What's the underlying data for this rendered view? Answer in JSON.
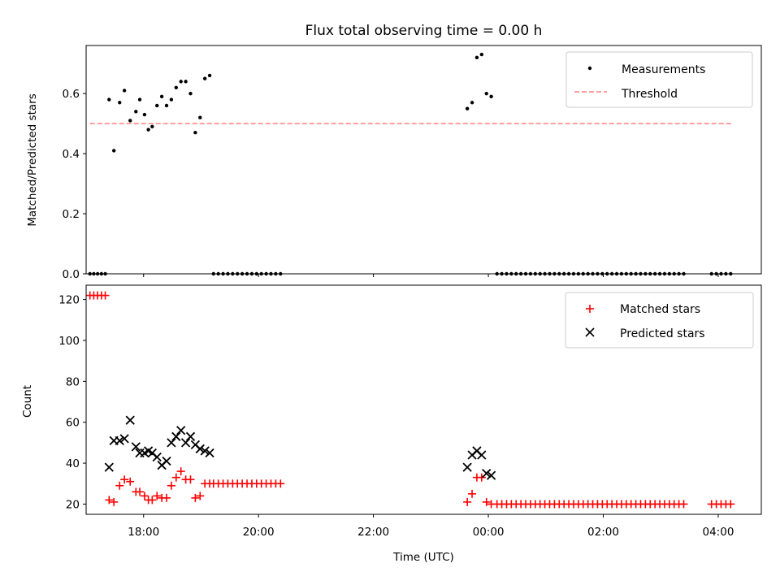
{
  "figure": {
    "title": "Flux total observing time = 0.00 h"
  },
  "chart_data": [
    {
      "type": "scatter",
      "ylabel": "Matched/Predicted stars",
      "xlabel": "",
      "xlim": [
        "17:00",
        "04:45"
      ],
      "ylim": [
        0,
        0.76
      ],
      "x_ticks": [
        "18:00",
        "20:00",
        "22:00",
        "00:00",
        "02:00",
        "04:00"
      ],
      "y_ticks": [
        "0.0",
        "0.2",
        "0.4",
        "0.6"
      ],
      "grid": false,
      "legend_position": "top-right",
      "legend": [
        "Measurements",
        "Threshold"
      ],
      "threshold": {
        "name": "Threshold",
        "value": 0.5,
        "x_start": "17:04",
        "x_end": "04:15",
        "color": "#ff7f7f",
        "style": "dashed"
      },
      "series": [
        {
          "name": "Measurements",
          "color": "#000000",
          "points": [
            [
              "17:04",
              0.0
            ],
            [
              "17:08",
              0.0
            ],
            [
              "17:12",
              0.0
            ],
            [
              "17:16",
              0.0
            ],
            [
              "17:20",
              0.0
            ],
            [
              "17:24",
              0.58
            ],
            [
              "17:29",
              0.41
            ],
            [
              "17:35",
              0.57
            ],
            [
              "17:40",
              0.61
            ],
            [
              "17:46",
              0.51
            ],
            [
              "17:52",
              0.54
            ],
            [
              "17:56",
              0.58
            ],
            [
              "18:01",
              0.53
            ],
            [
              "18:05",
              0.48
            ],
            [
              "18:09",
              0.49
            ],
            [
              "18:14",
              0.56
            ],
            [
              "18:19",
              0.59
            ],
            [
              "18:24",
              0.56
            ],
            [
              "18:29",
              0.58
            ],
            [
              "18:34",
              0.62
            ],
            [
              "18:39",
              0.64
            ],
            [
              "18:44",
              0.64
            ],
            [
              "18:49",
              0.6
            ],
            [
              "18:54",
              0.47
            ],
            [
              "18:59",
              0.52
            ],
            [
              "19:04",
              0.65
            ],
            [
              "19:09",
              0.66
            ],
            [
              "19:13",
              0.0
            ],
            [
              "19:18",
              0.0
            ],
            [
              "19:23",
              0.0
            ],
            [
              "19:28",
              0.0
            ],
            [
              "19:33",
              0.0
            ],
            [
              "19:38",
              0.0
            ],
            [
              "19:43",
              0.0
            ],
            [
              "19:48",
              0.0
            ],
            [
              "19:53",
              0.0
            ],
            [
              "19:58",
              0.0
            ],
            [
              "20:03",
              0.0
            ],
            [
              "20:08",
              0.0
            ],
            [
              "20:13",
              0.0
            ],
            [
              "20:18",
              0.0
            ],
            [
              "20:23",
              0.0
            ],
            [
              "23:38",
              0.55
            ],
            [
              "23:43",
              0.57
            ],
            [
              "23:48",
              0.72
            ],
            [
              "23:53",
              0.73
            ],
            [
              "23:58",
              0.6
            ],
            [
              "00:03",
              0.59
            ],
            [
              "00:09",
              0.0
            ],
            [
              "00:14",
              0.0
            ],
            [
              "00:19",
              0.0
            ],
            [
              "00:24",
              0.0
            ],
            [
              "00:29",
              0.0
            ],
            [
              "00:34",
              0.0
            ],
            [
              "00:39",
              0.0
            ],
            [
              "00:44",
              0.0
            ],
            [
              "00:49",
              0.0
            ],
            [
              "00:54",
              0.0
            ],
            [
              "00:59",
              0.0
            ],
            [
              "01:04",
              0.0
            ],
            [
              "01:09",
              0.0
            ],
            [
              "01:14",
              0.0
            ],
            [
              "01:19",
              0.0
            ],
            [
              "01:24",
              0.0
            ],
            [
              "01:29",
              0.0
            ],
            [
              "01:34",
              0.0
            ],
            [
              "01:39",
              0.0
            ],
            [
              "01:44",
              0.0
            ],
            [
              "01:49",
              0.0
            ],
            [
              "01:54",
              0.0
            ],
            [
              "01:59",
              0.0
            ],
            [
              "02:04",
              0.0
            ],
            [
              "02:09",
              0.0
            ],
            [
              "02:14",
              0.0
            ],
            [
              "02:19",
              0.0
            ],
            [
              "02:24",
              0.0
            ],
            [
              "02:29",
              0.0
            ],
            [
              "02:34",
              0.0
            ],
            [
              "02:39",
              0.0
            ],
            [
              "02:44",
              0.0
            ],
            [
              "02:49",
              0.0
            ],
            [
              "02:54",
              0.0
            ],
            [
              "02:59",
              0.0
            ],
            [
              "03:04",
              0.0
            ],
            [
              "03:09",
              0.0
            ],
            [
              "03:14",
              0.0
            ],
            [
              "03:19",
              0.0
            ],
            [
              "03:24",
              0.0
            ],
            [
              "03:53",
              0.0
            ],
            [
              "03:58",
              0.0
            ],
            [
              "04:03",
              0.0
            ],
            [
              "04:08",
              0.0
            ],
            [
              "04:13",
              0.0
            ]
          ]
        }
      ]
    },
    {
      "type": "scatter",
      "ylabel": "Count",
      "xlabel": "Time (UTC)",
      "xlim": [
        "17:00",
        "04:45"
      ],
      "ylim": [
        15,
        127
      ],
      "x_ticks": [
        "18:00",
        "20:00",
        "22:00",
        "00:00",
        "02:00",
        "04:00"
      ],
      "y_ticks": [
        "20",
        "40",
        "60",
        "80",
        "100",
        "120"
      ],
      "grid": false,
      "legend_position": "top-right",
      "legend": [
        "Matched stars",
        "Predicted stars"
      ],
      "series": [
        {
          "name": "Matched stars",
          "marker": "plus",
          "color": "#ff0000",
          "points": [
            [
              "17:04",
              122
            ],
            [
              "17:08",
              122
            ],
            [
              "17:12",
              122
            ],
            [
              "17:16",
              122
            ],
            [
              "17:20",
              122
            ],
            [
              "17:24",
              22
            ],
            [
              "17:29",
              21
            ],
            [
              "17:35",
              29
            ],
            [
              "17:40",
              32
            ],
            [
              "17:46",
              31
            ],
            [
              "17:52",
              26
            ],
            [
              "17:56",
              26
            ],
            [
              "18:01",
              24
            ],
            [
              "18:05",
              22
            ],
            [
              "18:09",
              22
            ],
            [
              "18:14",
              24
            ],
            [
              "18:19",
              23
            ],
            [
              "18:24",
              23
            ],
            [
              "18:29",
              29
            ],
            [
              "18:34",
              33
            ],
            [
              "18:39",
              36
            ],
            [
              "18:44",
              32
            ],
            [
              "18:49",
              32
            ],
            [
              "18:54",
              23
            ],
            [
              "18:59",
              24
            ],
            [
              "19:04",
              30
            ],
            [
              "19:09",
              30
            ],
            [
              "19:13",
              30
            ],
            [
              "19:18",
              30
            ],
            [
              "19:23",
              30
            ],
            [
              "19:28",
              30
            ],
            [
              "19:33",
              30
            ],
            [
              "19:38",
              30
            ],
            [
              "19:43",
              30
            ],
            [
              "19:48",
              30
            ],
            [
              "19:53",
              30
            ],
            [
              "19:58",
              30
            ],
            [
              "20:03",
              30
            ],
            [
              "20:08",
              30
            ],
            [
              "20:13",
              30
            ],
            [
              "20:18",
              30
            ],
            [
              "20:23",
              30
            ],
            [
              "23:38",
              21
            ],
            [
              "23:43",
              25
            ],
            [
              "23:48",
              33
            ],
            [
              "23:53",
              33
            ],
            [
              "23:58",
              21
            ],
            [
              "00:03",
              20
            ],
            [
              "00:09",
              20
            ],
            [
              "00:14",
              20
            ],
            [
              "00:19",
              20
            ],
            [
              "00:24",
              20
            ],
            [
              "00:29",
              20
            ],
            [
              "00:34",
              20
            ],
            [
              "00:39",
              20
            ],
            [
              "00:44",
              20
            ],
            [
              "00:49",
              20
            ],
            [
              "00:54",
              20
            ],
            [
              "00:59",
              20
            ],
            [
              "01:04",
              20
            ],
            [
              "01:09",
              20
            ],
            [
              "01:14",
              20
            ],
            [
              "01:19",
              20
            ],
            [
              "01:24",
              20
            ],
            [
              "01:29",
              20
            ],
            [
              "01:34",
              20
            ],
            [
              "01:39",
              20
            ],
            [
              "01:44",
              20
            ],
            [
              "01:49",
              20
            ],
            [
              "01:54",
              20
            ],
            [
              "01:59",
              20
            ],
            [
              "02:04",
              20
            ],
            [
              "02:09",
              20
            ],
            [
              "02:14",
              20
            ],
            [
              "02:19",
              20
            ],
            [
              "02:24",
              20
            ],
            [
              "02:29",
              20
            ],
            [
              "02:34",
              20
            ],
            [
              "02:39",
              20
            ],
            [
              "02:44",
              20
            ],
            [
              "02:49",
              20
            ],
            [
              "02:54",
              20
            ],
            [
              "02:59",
              20
            ],
            [
              "03:04",
              20
            ],
            [
              "03:09",
              20
            ],
            [
              "03:14",
              20
            ],
            [
              "03:19",
              20
            ],
            [
              "03:24",
              20
            ],
            [
              "03:53",
              20
            ],
            [
              "03:58",
              20
            ],
            [
              "04:03",
              20
            ],
            [
              "04:08",
              20
            ],
            [
              "04:13",
              20
            ]
          ]
        },
        {
          "name": "Predicted stars",
          "marker": "x",
          "color": "#000000",
          "points": [
            [
              "17:24",
              38
            ],
            [
              "17:29",
              51
            ],
            [
              "17:35",
              51
            ],
            [
              "17:40",
              52
            ],
            [
              "17:46",
              61
            ],
            [
              "17:52",
              48
            ],
            [
              "17:56",
              45
            ],
            [
              "18:01",
              45
            ],
            [
              "18:05",
              46
            ],
            [
              "18:09",
              45
            ],
            [
              "18:14",
              43
            ],
            [
              "18:19",
              39
            ],
            [
              "18:24",
              41
            ],
            [
              "18:29",
              50
            ],
            [
              "18:34",
              53
            ],
            [
              "18:39",
              56
            ],
            [
              "18:44",
              50
            ],
            [
              "18:49",
              53
            ],
            [
              "18:54",
              49
            ],
            [
              "18:59",
              47
            ],
            [
              "19:04",
              46
            ],
            [
              "19:09",
              45
            ],
            [
              "23:38",
              38
            ],
            [
              "23:43",
              44
            ],
            [
              "23:48",
              46
            ],
            [
              "23:53",
              44
            ],
            [
              "23:58",
              35
            ],
            [
              "00:03",
              34
            ]
          ]
        }
      ]
    }
  ]
}
